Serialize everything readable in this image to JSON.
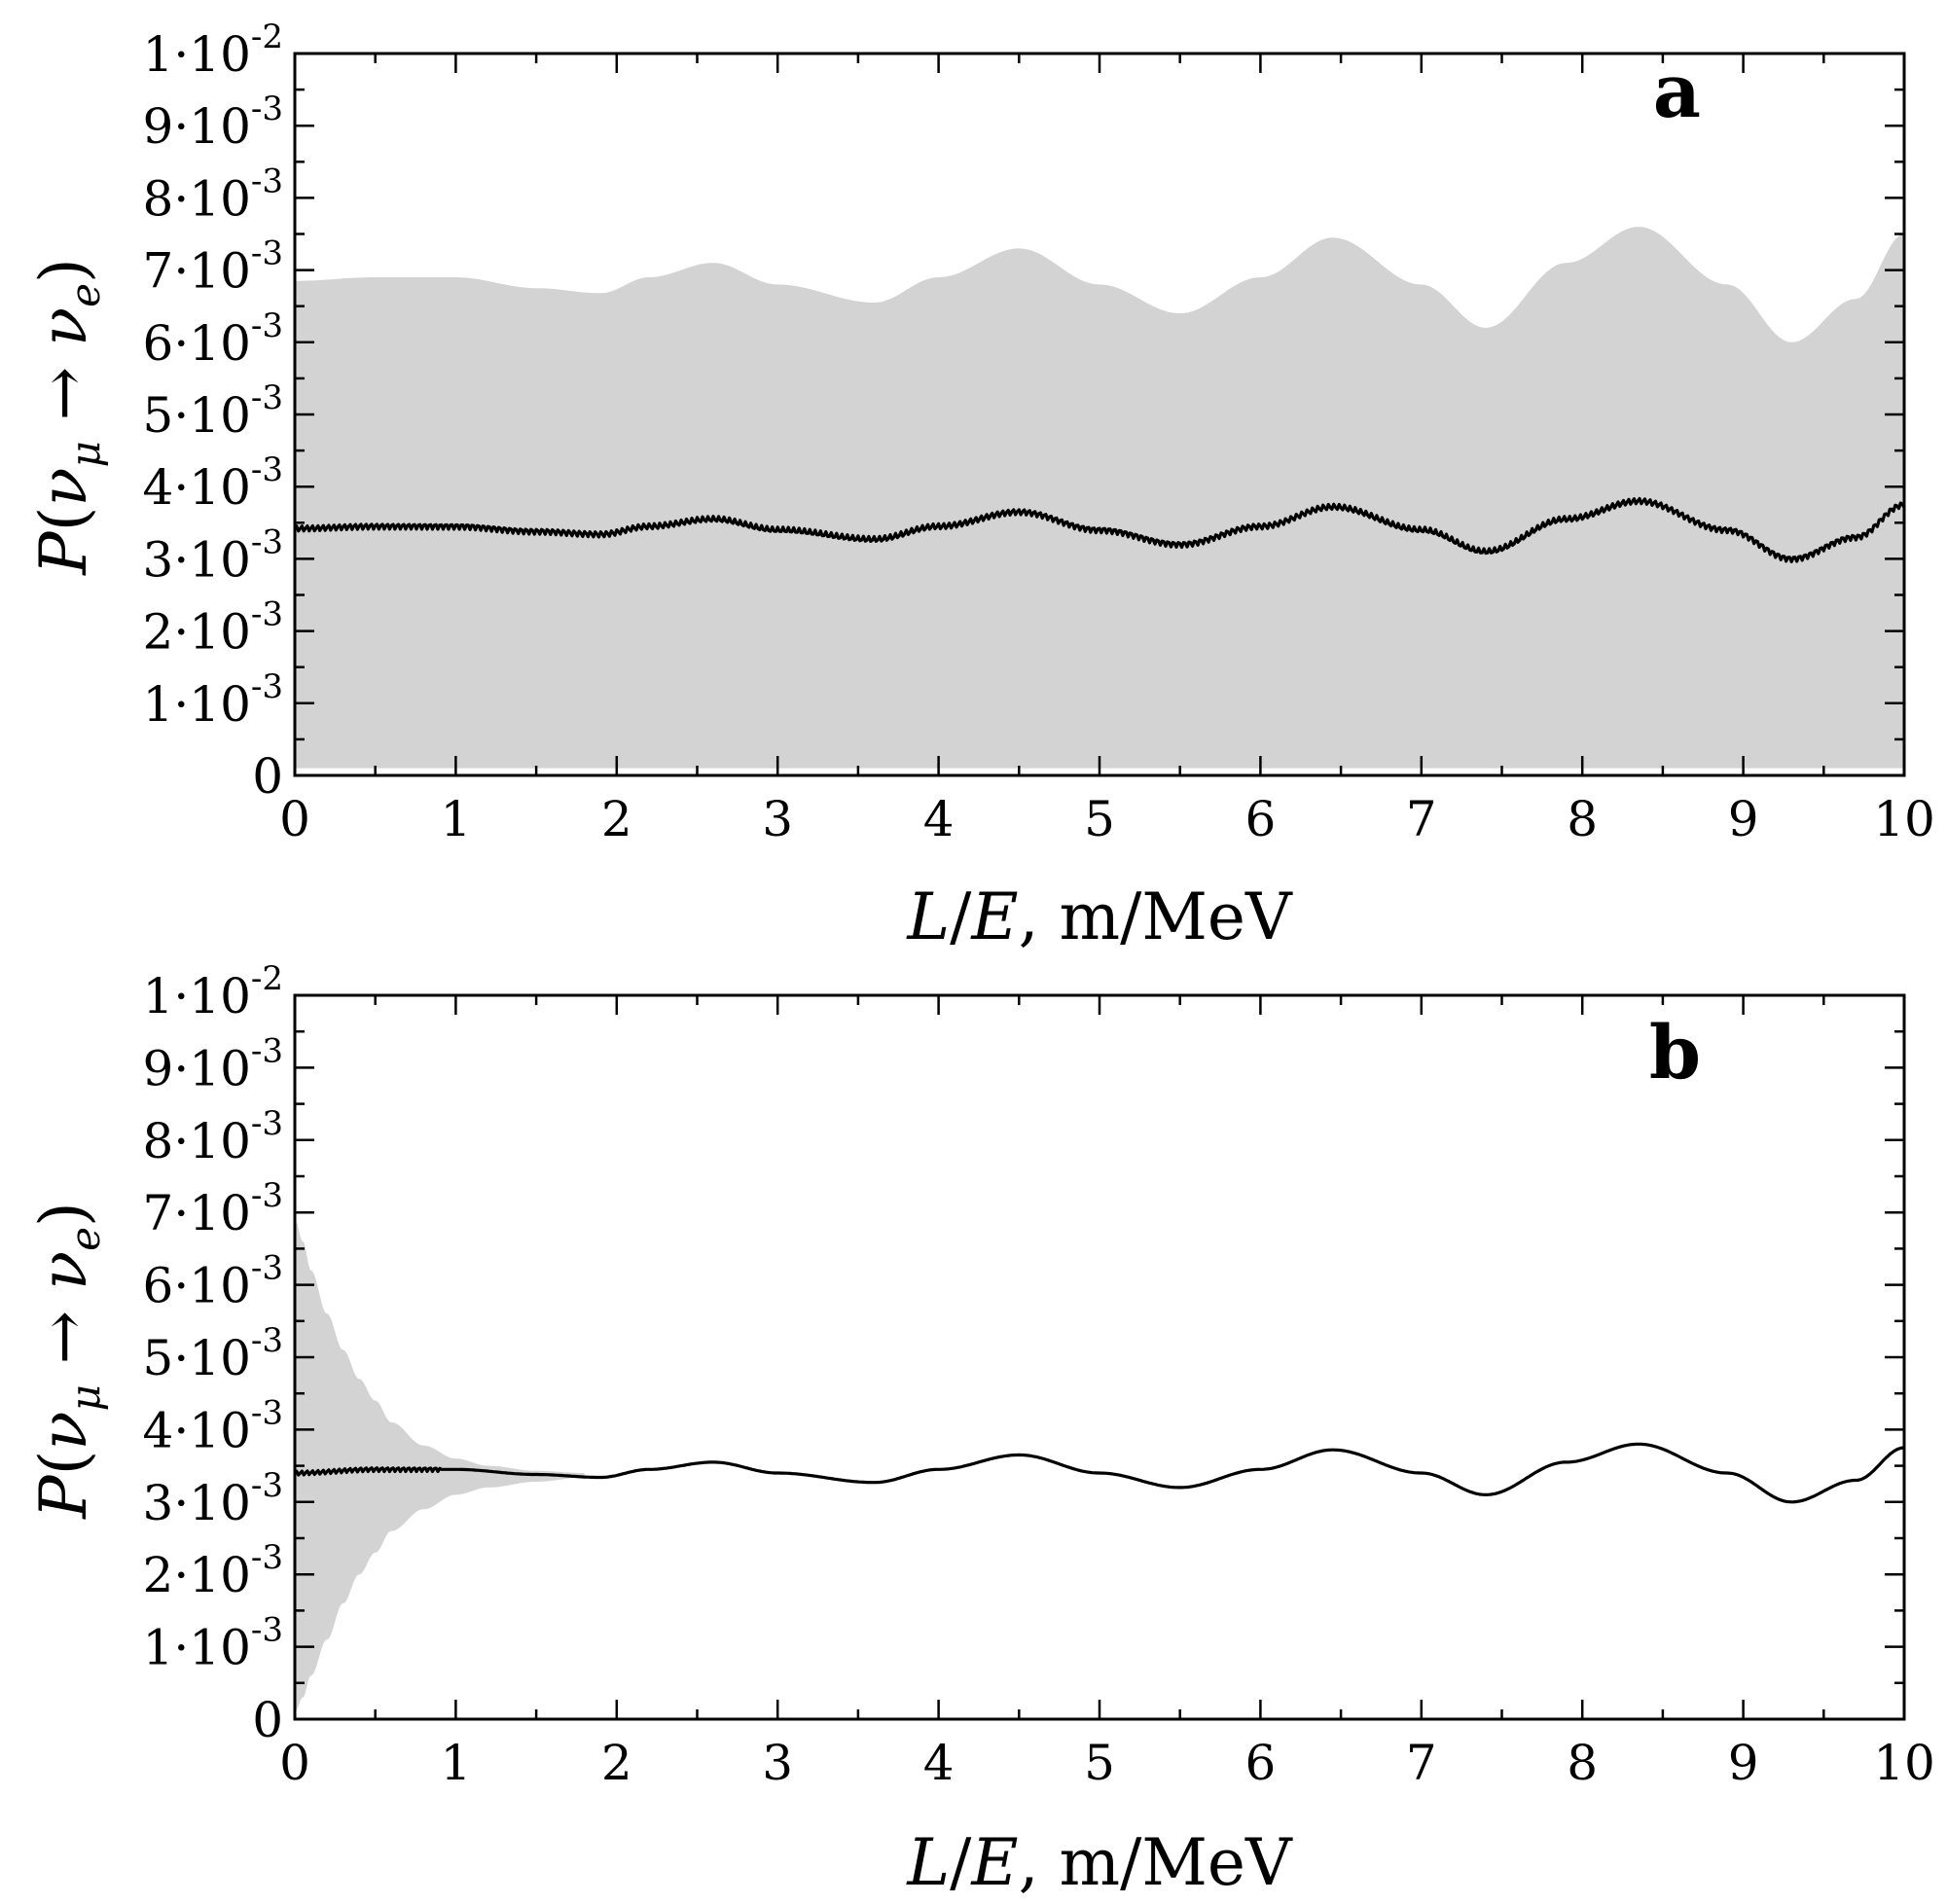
{
  "colors": {
    "band": "#d3d3d3",
    "curve": "#000000",
    "axes": "#000000",
    "background": "#ffffff"
  },
  "chart_data": [
    {
      "type": "area",
      "panel_label": "a",
      "xlabel": "L/E, m/MeV",
      "xlabel_parts": {
        "l": "L",
        "slash": "/",
        "e": "E",
        "rest": ", m/MeV"
      },
      "ylabel": "P(νμ → νe)",
      "ylabel_parts": {
        "p": "P",
        "open": "(",
        "nu1": "ν",
        "sub1": "μ",
        "arrow": " → ",
        "nu2": "ν",
        "sub2": "e",
        "close": ")"
      },
      "xlim": [
        0,
        10
      ],
      "ylim": [
        0,
        0.01
      ],
      "x_ticks": [
        "0",
        "1",
        "2",
        "3",
        "4",
        "5",
        "6",
        "7",
        "8",
        "9",
        "10"
      ],
      "y_ticks": [
        {
          "value": 0,
          "mantissa": "0",
          "exponent": ""
        },
        {
          "value": 0.001,
          "mantissa": "1·10",
          "exponent": "-3"
        },
        {
          "value": 0.002,
          "mantissa": "2·10",
          "exponent": "-3"
        },
        {
          "value": 0.003,
          "mantissa": "3·10",
          "exponent": "-3"
        },
        {
          "value": 0.004,
          "mantissa": "4·10",
          "exponent": "-3"
        },
        {
          "value": 0.005,
          "mantissa": "5·10",
          "exponent": "-3"
        },
        {
          "value": 0.006,
          "mantissa": "6·10",
          "exponent": "-3"
        },
        {
          "value": 0.007,
          "mantissa": "7·10",
          "exponent": "-3"
        },
        {
          "value": 0.008,
          "mantissa": "8·10",
          "exponent": "-3"
        },
        {
          "value": 0.009,
          "mantissa": "9·10",
          "exponent": "-3"
        },
        {
          "value": 0.01,
          "mantissa": "1·10",
          "exponent": "-2"
        }
      ],
      "band": {
        "description": "rapidly oscillating probability envelope",
        "x": [
          0,
          0.5,
          1.0,
          1.5,
          1.9,
          2.2,
          2.6,
          3.0,
          3.6,
          4.0,
          4.5,
          5.0,
          5.5,
          6.0,
          6.45,
          7.0,
          7.4,
          7.9,
          8.35,
          8.9,
          9.3,
          9.7,
          10
        ],
        "upper": [
          0.00685,
          0.0069,
          0.0069,
          0.00675,
          0.00668,
          0.0069,
          0.0071,
          0.0068,
          0.00655,
          0.0069,
          0.0073,
          0.0068,
          0.0064,
          0.0069,
          0.00745,
          0.0068,
          0.0062,
          0.0071,
          0.0076,
          0.0068,
          0.006,
          0.0066,
          0.0075
        ],
        "lower": [
          0.0001,
          0.0001,
          0.0001,
          0.0001,
          0.0001,
          0.0001,
          0.0001,
          0.0001,
          0.0001,
          0.0001,
          0.0001,
          0.0001,
          0.0001,
          0.0001,
          0.0001,
          0.0001,
          0.0001,
          0.0001,
          0.0001,
          0.0001,
          0.0001,
          0.0001,
          0.0001
        ]
      },
      "curve": {
        "description": "averaged probability",
        "jitter": 4e-05,
        "x": [
          0,
          0.5,
          1.0,
          1.5,
          1.9,
          2.2,
          2.6,
          3.0,
          3.6,
          4.0,
          4.5,
          5.0,
          5.5,
          6.0,
          6.45,
          7.0,
          7.4,
          7.9,
          8.35,
          8.9,
          9.3,
          9.7,
          10
        ],
        "y": [
          0.00342,
          0.00345,
          0.00345,
          0.00338,
          0.00334,
          0.00345,
          0.00355,
          0.0034,
          0.00327,
          0.00345,
          0.00365,
          0.0034,
          0.0032,
          0.00345,
          0.00372,
          0.0034,
          0.0031,
          0.00355,
          0.0038,
          0.0034,
          0.003,
          0.0033,
          0.00375
        ]
      }
    },
    {
      "type": "area",
      "panel_label": "b",
      "xlabel": "L/E, m/MeV",
      "xlabel_parts": {
        "l": "L",
        "slash": "/",
        "e": "E",
        "rest": ", m/MeV"
      },
      "ylabel": "P(νμ → νe)",
      "ylabel_parts": {
        "p": "P",
        "open": "(",
        "nu1": "ν",
        "sub1": "μ",
        "arrow": " → ",
        "nu2": "ν",
        "sub2": "e",
        "close": ")"
      },
      "xlim": [
        0,
        10
      ],
      "ylim": [
        0,
        0.01
      ],
      "x_ticks": [
        "0",
        "1",
        "2",
        "3",
        "4",
        "5",
        "6",
        "7",
        "8",
        "9",
        "10"
      ],
      "y_ticks": [
        {
          "value": 0,
          "mantissa": "0",
          "exponent": ""
        },
        {
          "value": 0.001,
          "mantissa": "1·10",
          "exponent": "-3"
        },
        {
          "value": 0.002,
          "mantissa": "2·10",
          "exponent": "-3"
        },
        {
          "value": 0.003,
          "mantissa": "3·10",
          "exponent": "-3"
        },
        {
          "value": 0.004,
          "mantissa": "4·10",
          "exponent": "-3"
        },
        {
          "value": 0.005,
          "mantissa": "5·10",
          "exponent": "-3"
        },
        {
          "value": 0.006,
          "mantissa": "6·10",
          "exponent": "-3"
        },
        {
          "value": 0.007,
          "mantissa": "7·10",
          "exponent": "-3"
        },
        {
          "value": 0.008,
          "mantissa": "8·10",
          "exponent": "-3"
        },
        {
          "value": 0.009,
          "mantissa": "9·10",
          "exponent": "-3"
        },
        {
          "value": 0.01,
          "mantissa": "1·10",
          "exponent": "-2"
        }
      ],
      "band": {
        "description": "damped oscillation envelope near L/E = 0",
        "x": [
          0,
          0.05,
          0.1,
          0.2,
          0.3,
          0.4,
          0.5,
          0.6,
          0.8,
          1.0,
          1.2,
          1.5,
          1.8
        ],
        "upper": [
          0.0069,
          0.0066,
          0.0062,
          0.0056,
          0.0051,
          0.0047,
          0.0044,
          0.0041,
          0.00378,
          0.0036,
          0.0035,
          0.00343,
          0.0034
        ],
        "lower": [
          0.0001,
          0.0003,
          0.0006,
          0.0011,
          0.0016,
          0.002,
          0.0023,
          0.0026,
          0.0029,
          0.0031,
          0.0032,
          0.00328,
          0.00334
        ]
      },
      "curve": {
        "description": "averaged probability",
        "jitter_until_x": 0.9,
        "jitter": 3e-05,
        "x": [
          0,
          0.5,
          1.0,
          1.5,
          1.9,
          2.2,
          2.6,
          3.0,
          3.6,
          4.0,
          4.5,
          5.0,
          5.5,
          6.0,
          6.45,
          7.0,
          7.4,
          7.9,
          8.35,
          8.9,
          9.3,
          9.7,
          10
        ],
        "y": [
          0.0034,
          0.00345,
          0.00345,
          0.00338,
          0.00334,
          0.00345,
          0.00355,
          0.0034,
          0.00327,
          0.00345,
          0.00365,
          0.0034,
          0.0032,
          0.00345,
          0.00372,
          0.0034,
          0.0031,
          0.00355,
          0.0038,
          0.0034,
          0.003,
          0.0033,
          0.00375
        ]
      }
    }
  ]
}
